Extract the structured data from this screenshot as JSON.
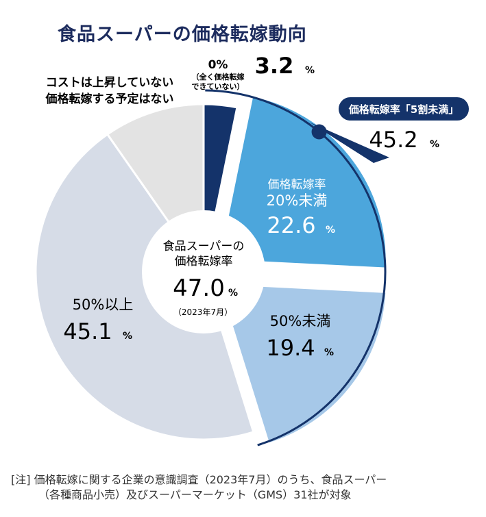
{
  "chart_data": {
    "type": "pie",
    "title": "食品スーパーの価格転嫁動向",
    "unit": "%",
    "slices": [
      {
        "id": "zero",
        "value": 3.2,
        "color": "#14336a",
        "label_lines": [
          "0%",
          "（全く価格転嫁",
          "できていない）"
        ],
        "value_text": "3.2",
        "pct": "%"
      },
      {
        "id": "under20",
        "value": 22.6,
        "color": "#4ca6dc",
        "label_lines": [
          "価格転嫁率",
          "20%未満"
        ],
        "value_text": "22.6",
        "pct": "%"
      },
      {
        "id": "under50",
        "value": 19.4,
        "color": "#a6c8e8",
        "label_lines": [
          "50%未満"
        ],
        "value_text": "19.4",
        "pct": "%"
      },
      {
        "id": "over50",
        "value": 45.1,
        "color": "#d6dce7",
        "label_lines": [
          "50%以上"
        ],
        "value_text": "45.1",
        "pct": "%"
      },
      {
        "id": "no_plan",
        "value": 9.7,
        "color": "#e3e3e3",
        "label_lines": [
          "コストは上昇していない",
          "価格転嫁する予定はない"
        ],
        "value_text": "",
        "pct": ""
      }
    ],
    "center": {
      "line1": "食品スーパーの",
      "line2": "価格転嫁率",
      "value": "47.0",
      "pct": "%",
      "date": "（2023年7月）"
    },
    "callout": {
      "label": "価格転嫁率「5割未満」",
      "value": "45.2",
      "pct": "%"
    }
  },
  "note": {
    "line1": "[注] 価格転嫁に関する企業の意識調査（2023年7月）のうち、食品スーパー",
    "line2": "（各種商品小売）及びスーパーマーケット（GMS）31社が対象"
  }
}
